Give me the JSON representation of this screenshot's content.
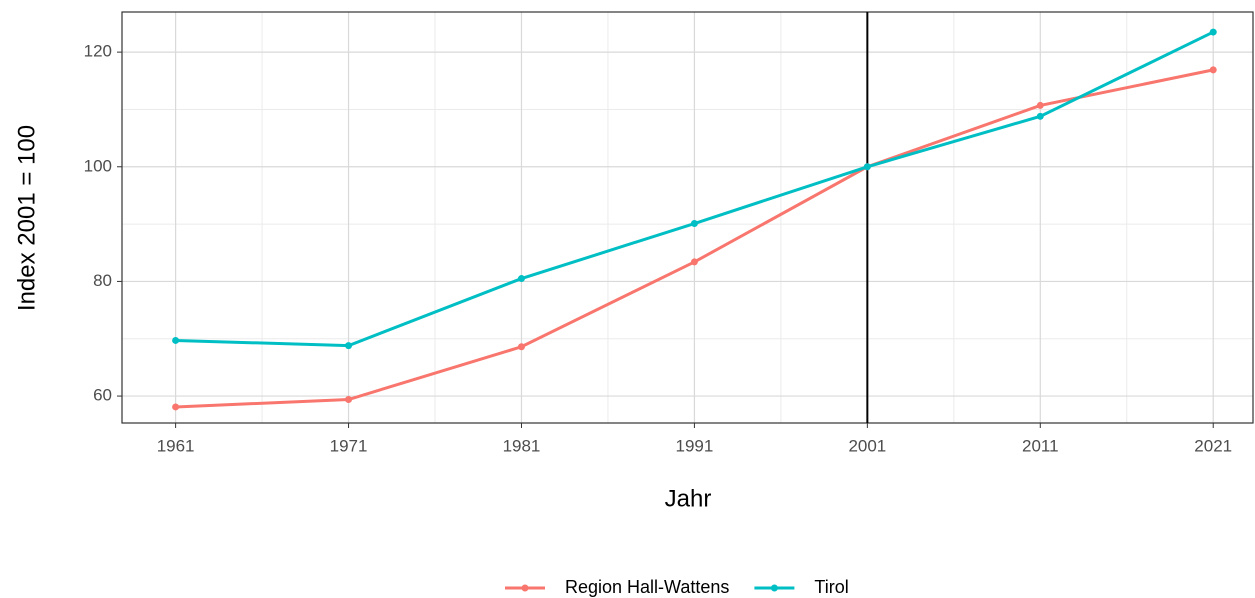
{
  "chart_data": {
    "type": "line",
    "x_label": "Jahr",
    "y_label": "Index 2001 = 100",
    "x": [
      1961,
      1971,
      1981,
      1991,
      2001,
      2011,
      2021
    ],
    "series": [
      {
        "name": "Region Hall-Wattens",
        "color": "#F8766D",
        "values": [
          58.1,
          59.4,
          68.6,
          83.4,
          100,
          110.7,
          116.9
        ]
      },
      {
        "name": "Tirol",
        "color": "#00BFC4",
        "values": [
          69.7,
          68.8,
          80.5,
          90.1,
          100,
          108.8,
          123.5
        ]
      }
    ],
    "xlim": [
      1957.9,
      2023.3
    ],
    "xticks": [
      1961,
      1971,
      1981,
      1991,
      2001,
      2011,
      2021
    ],
    "xminor": [
      1966,
      1976,
      1986,
      1996,
      2006,
      2016
    ],
    "ylim": [
      55.3,
      127
    ],
    "yticks": [
      60,
      80,
      100,
      120
    ],
    "yminor": [
      70,
      90,
      110
    ],
    "vline": 2001,
    "grid": true,
    "legend": "bottom"
  }
}
